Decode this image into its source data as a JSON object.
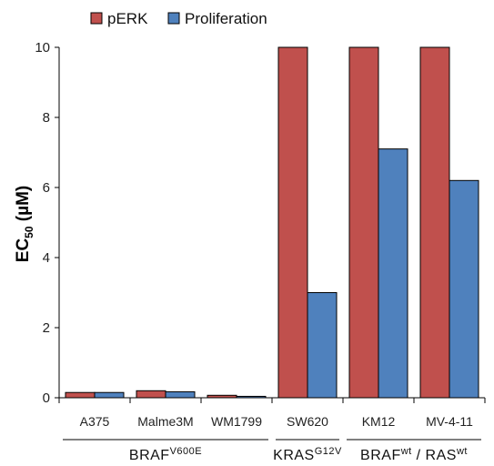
{
  "chart_data": {
    "type": "bar",
    "categories": [
      "A375",
      "Malme3M",
      "WM1799",
      "SW620",
      "KM12",
      "MV-4-11"
    ],
    "series": [
      {
        "name": "pERK",
        "color": "#c0504d",
        "values": [
          0.15,
          0.2,
          0.07,
          10,
          10,
          10
        ]
      },
      {
        "name": "Proliferation",
        "color": "#4f81bd",
        "values": [
          0.15,
          0.17,
          0.04,
          3.0,
          7.1,
          6.2
        ]
      }
    ],
    "ylabel": {
      "main": "EC",
      "sub": "50",
      "unit": " (µM)"
    },
    "ylim": [
      0,
      10
    ],
    "yticks": [
      "0",
      "2",
      "4",
      "6",
      "8",
      "10"
    ],
    "ytick_values": [
      0,
      2,
      4,
      6,
      8,
      10
    ],
    "legend_position": "top",
    "grid": false,
    "groups": [
      {
        "base": "BRAF",
        "sup": "V600E",
        "tail_base": "",
        "tail_sup": "",
        "first": 0,
        "last": 2
      },
      {
        "base": "KRAS",
        "sup": "G12V",
        "tail_base": "",
        "tail_sup": "",
        "first": 3,
        "last": 3
      },
      {
        "base": "BRAF",
        "sup": "wt",
        "tail_base": " / RAS",
        "tail_sup": "wt",
        "first": 4,
        "last": 5
      }
    ]
  }
}
